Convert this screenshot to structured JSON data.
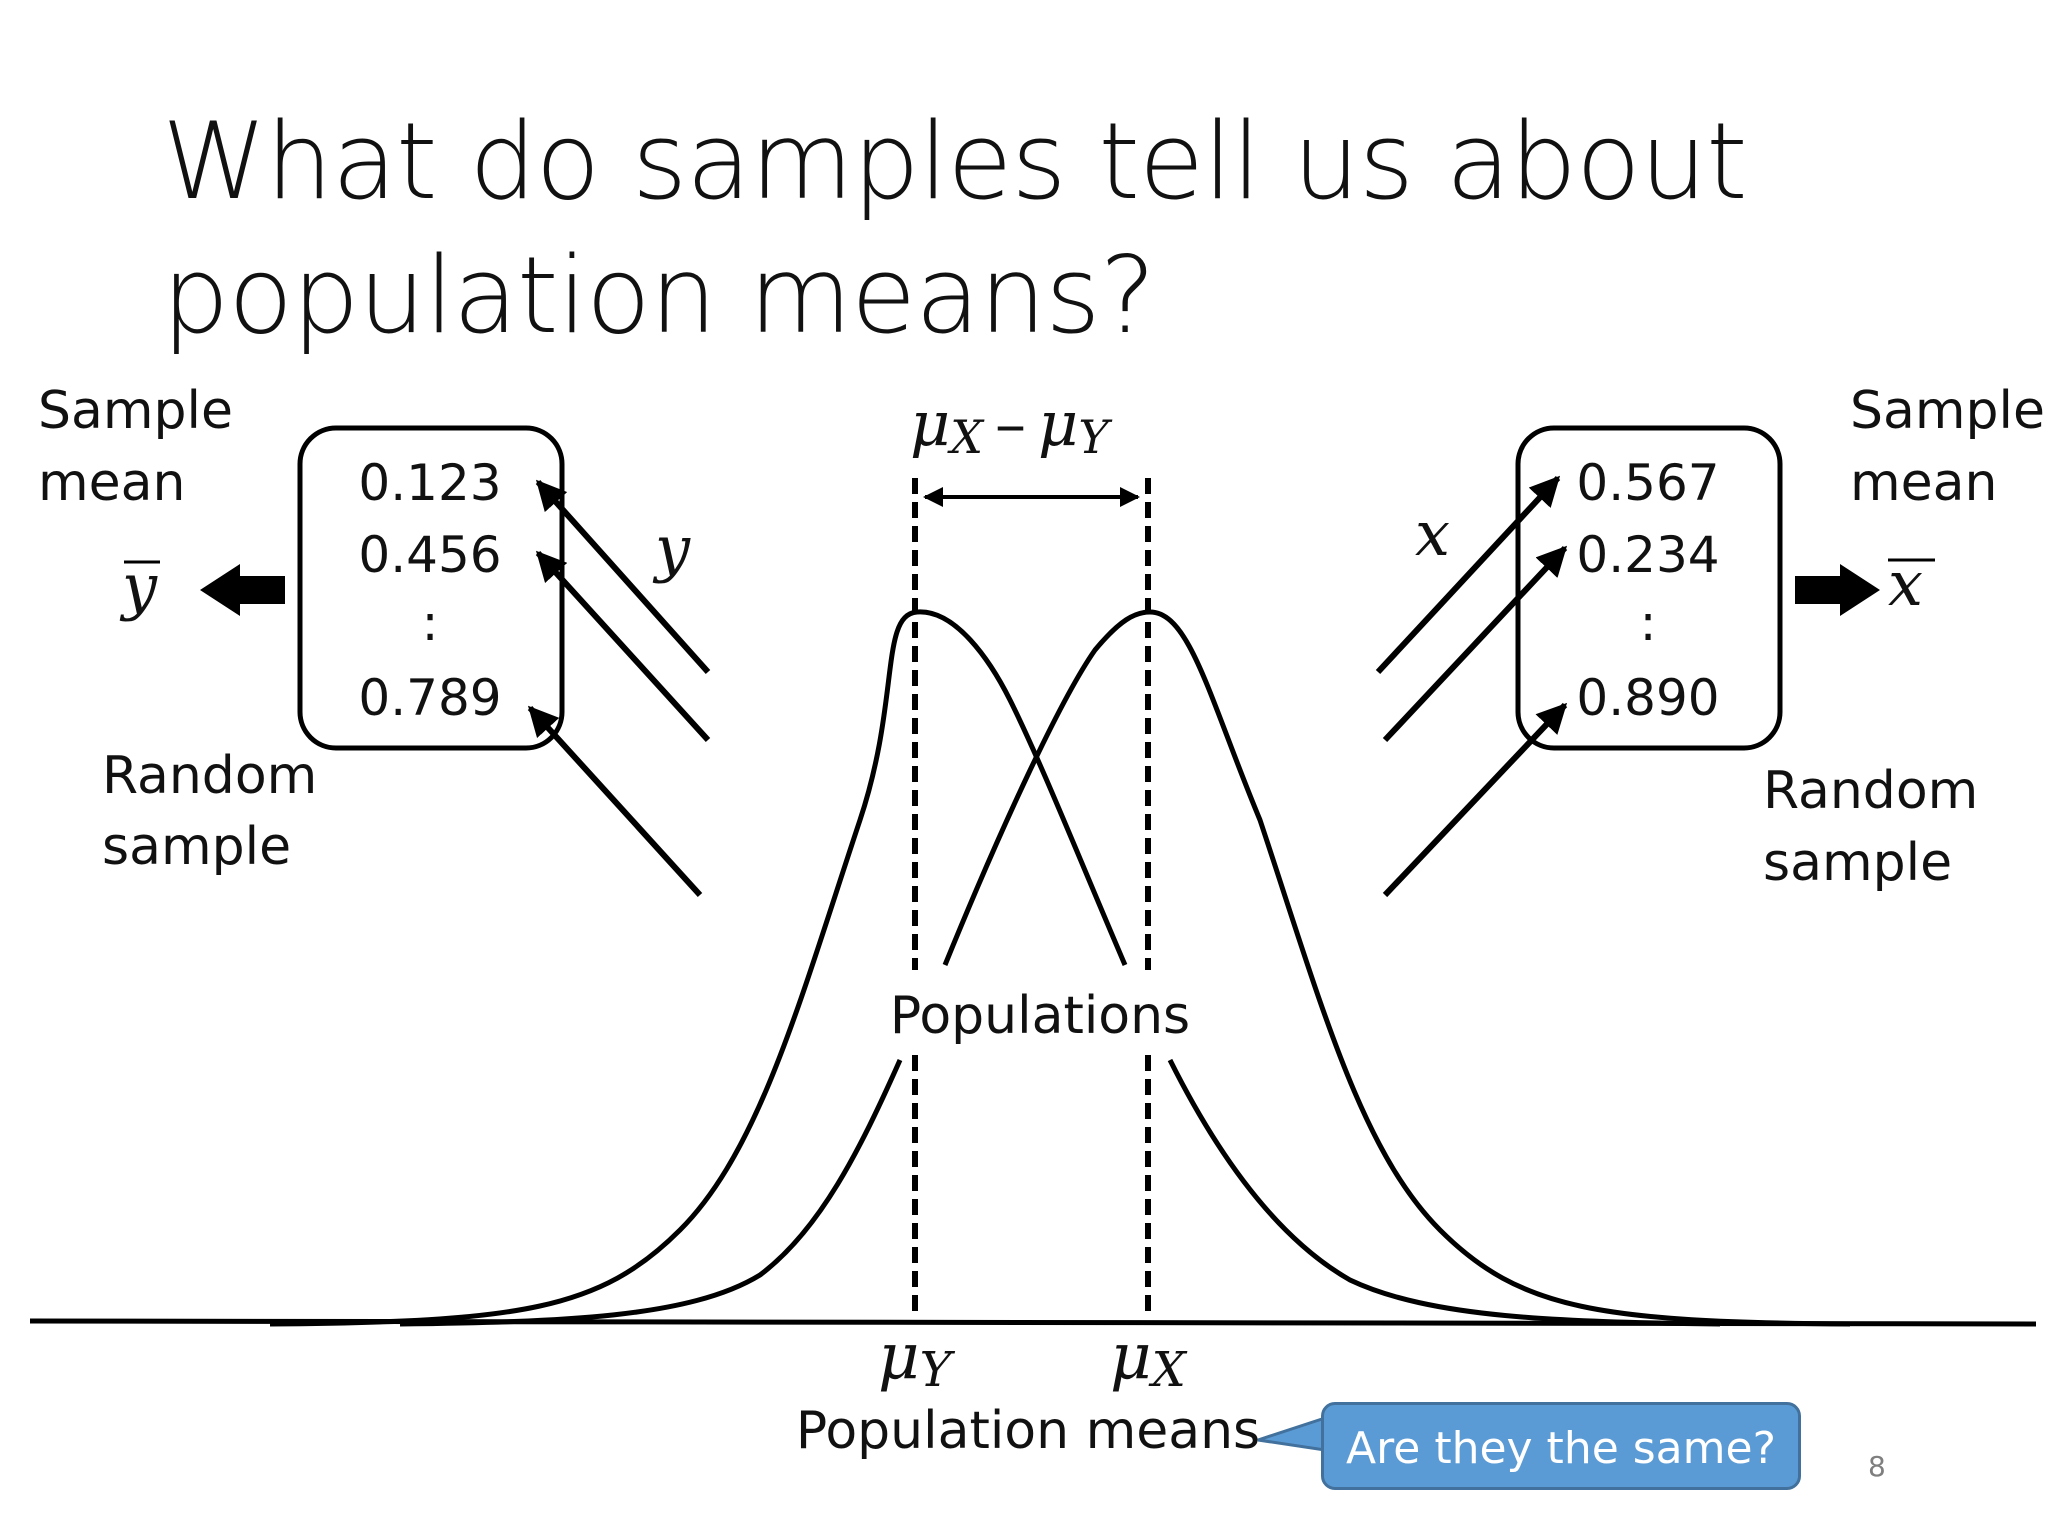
{
  "slide": {
    "title_line1": "What do samples tell us about",
    "title_line2": "population means?",
    "page_number": "8"
  },
  "diagram": {
    "left": {
      "sample_mean_line1": "Sample",
      "sample_mean_line2": "mean",
      "mean_symbol": "y",
      "values": [
        "0.123",
        "0.456",
        ":",
        "0.789"
      ],
      "variable": "y",
      "random_sample_line1": "Random",
      "random_sample_line2": "sample"
    },
    "right": {
      "sample_mean_line1": "Sample",
      "sample_mean_line2": "mean",
      "mean_symbol": "x",
      "values": [
        "0.567",
        "0.234",
        ":",
        "0.890"
      ],
      "variable": "x",
      "random_sample_line1": "Random",
      "random_sample_line2": "sample"
    },
    "difference_label": "μX − μY",
    "diff_mu1": "μ",
    "diff_sub1": "X",
    "diff_minus": "–",
    "diff_mu2": "μ",
    "diff_sub2": "Y",
    "populations_label": "Populations",
    "mu_y_symbol": "μ",
    "mu_y_sub": "Y",
    "mu_x_symbol": "μ",
    "mu_x_sub": "X",
    "population_means_label": "Population means",
    "callout_text": "Are they the same?"
  }
}
